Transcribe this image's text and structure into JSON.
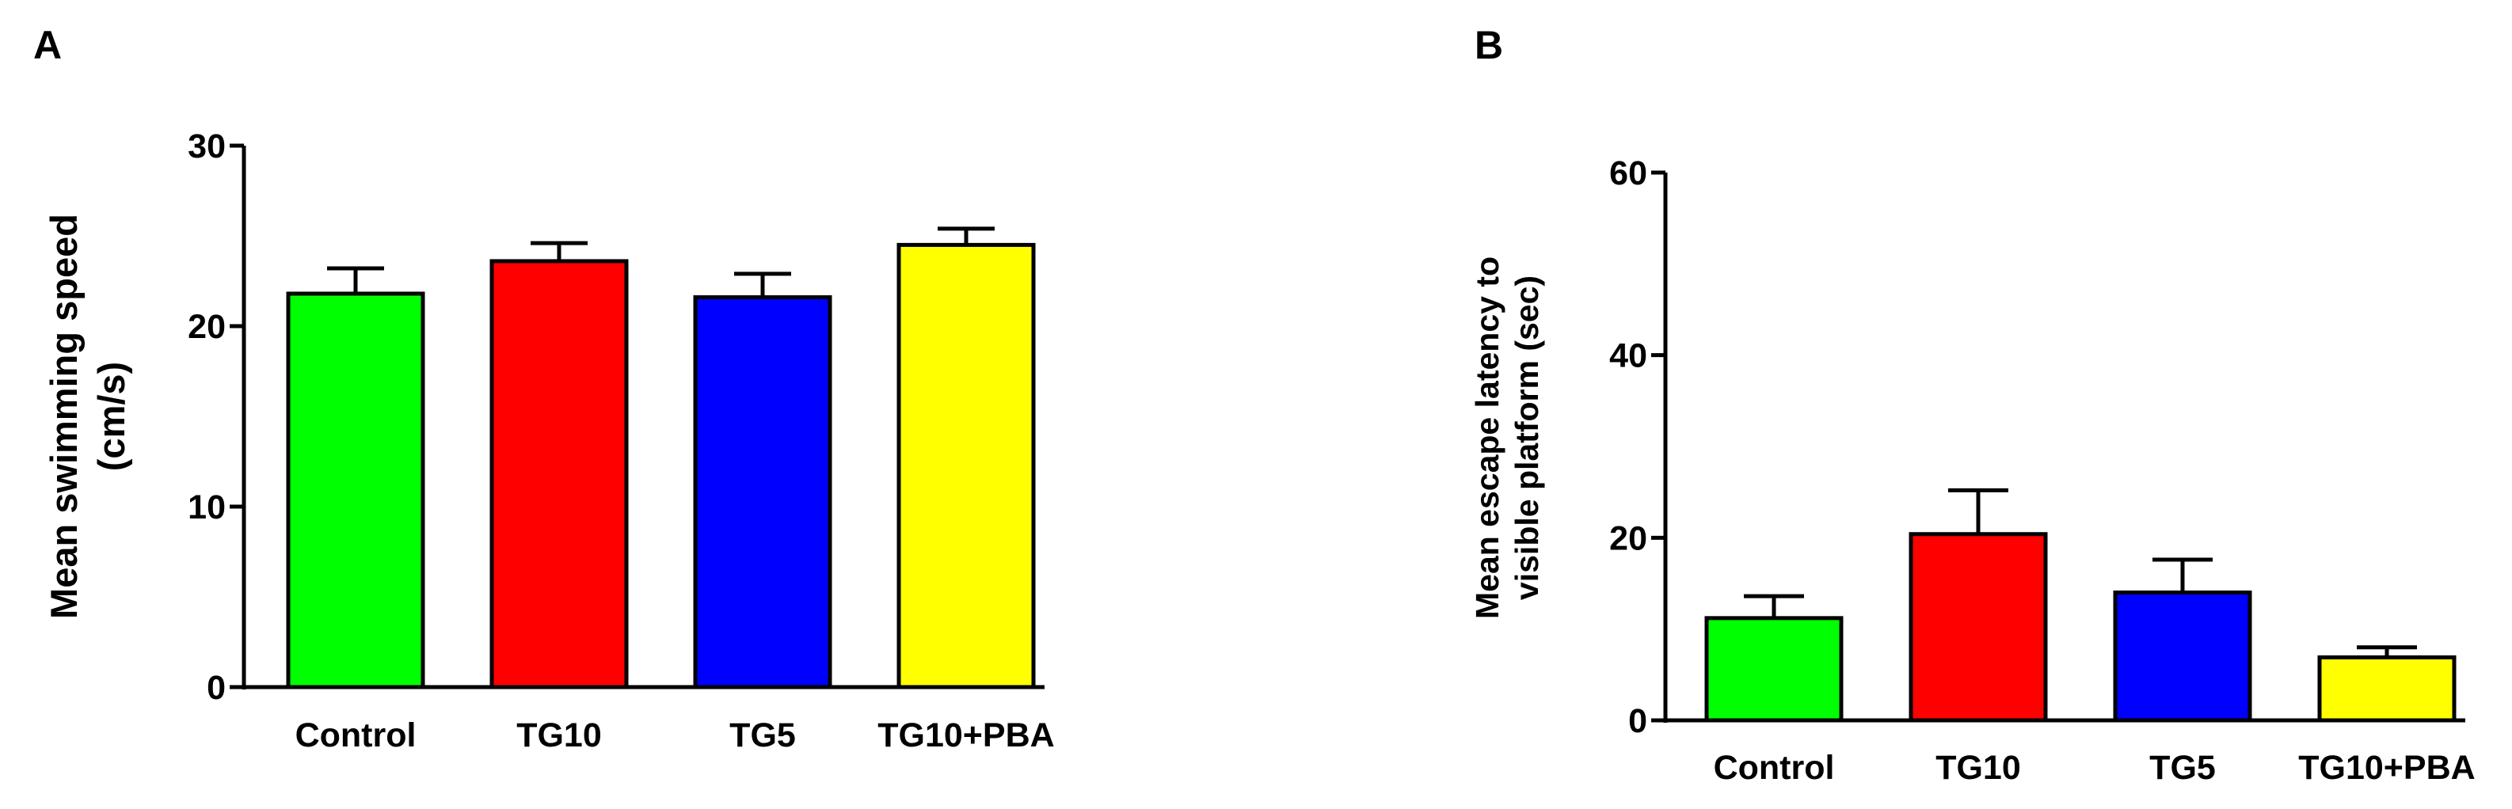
{
  "chart_data": [
    {
      "panel": "A",
      "type": "bar",
      "categories": [
        "Control",
        "TG10",
        "TG5",
        "TG10+PBA"
      ],
      "values": [
        21.8,
        23.6,
        21.6,
        24.5
      ],
      "errors": [
        1.4,
        1.0,
        1.3,
        0.9
      ],
      "ylabel": [
        "Mean swimming speed",
        "(cm/s)"
      ],
      "ylim": [
        0,
        30
      ],
      "yticks": [
        0,
        10,
        20,
        30
      ],
      "colors": [
        "#00ff00",
        "#ff0000",
        "#0000ff",
        "#ffff00"
      ],
      "grid": false
    },
    {
      "panel": "B",
      "type": "bar",
      "categories": [
        "Control",
        "TG10",
        "TG5",
        "TG10+PBA"
      ],
      "values": [
        11.2,
        20.4,
        14.0,
        6.9
      ],
      "errors": [
        2.4,
        4.8,
        3.6,
        1.1
      ],
      "ylabel": [
        "Mean escape latency to",
        "visible platform (sec)"
      ],
      "ylim": [
        0,
        60
      ],
      "yticks": [
        0,
        20,
        40,
        60
      ],
      "colors": [
        "#00ff00",
        "#ff0000",
        "#0000ff",
        "#ffff00"
      ],
      "grid": false
    }
  ]
}
